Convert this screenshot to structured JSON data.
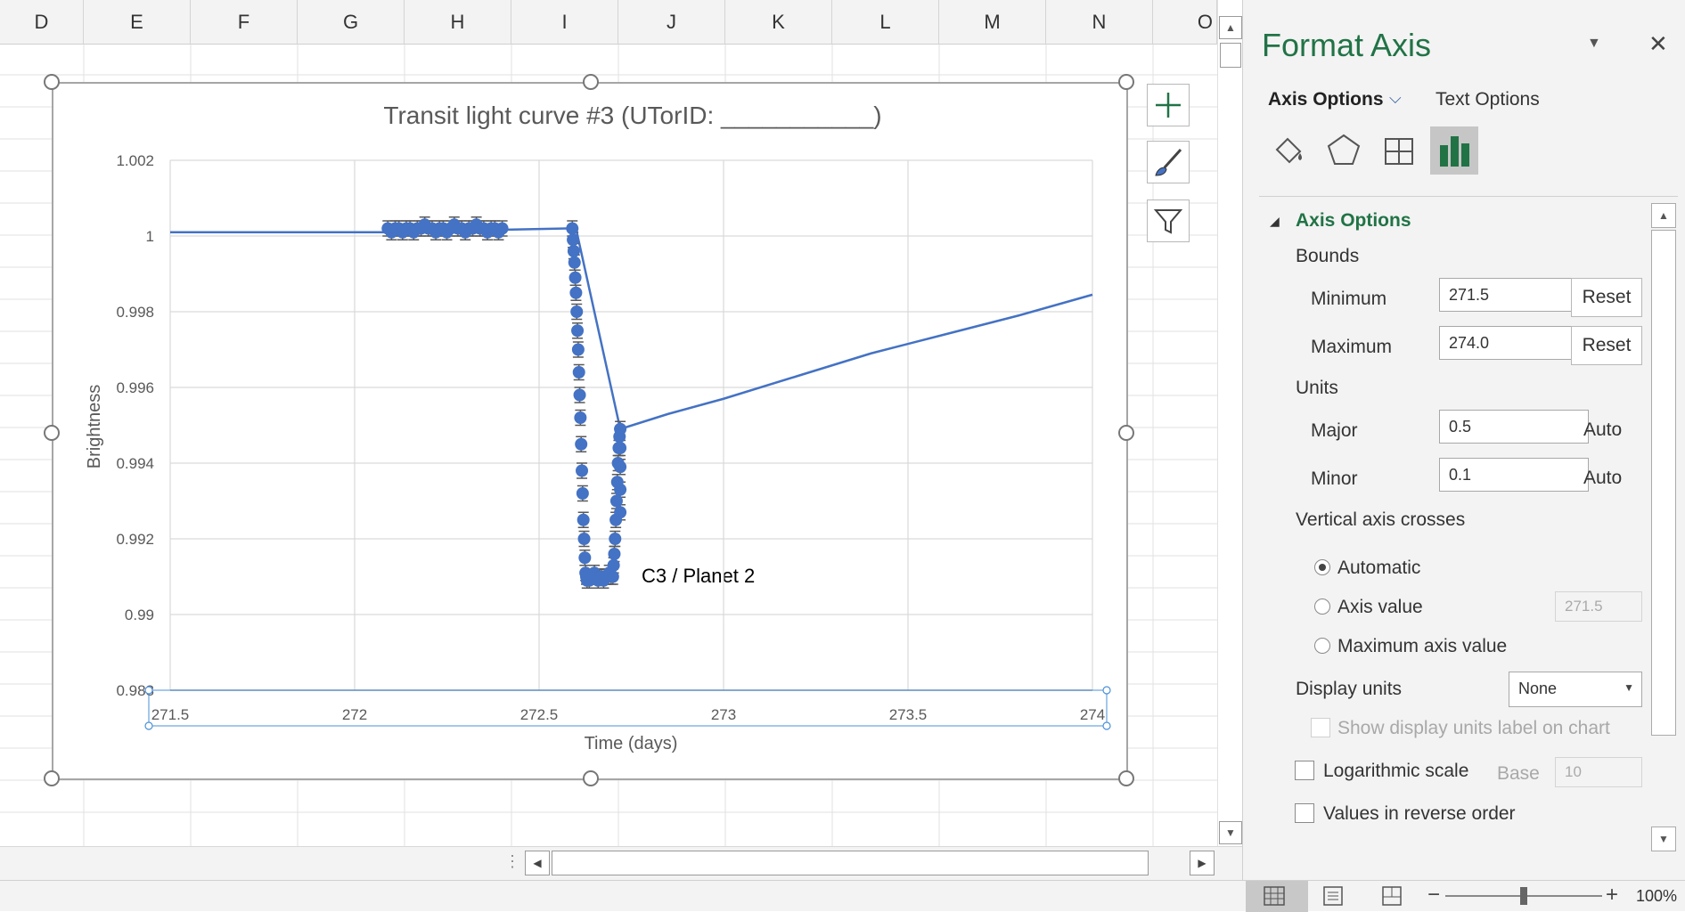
{
  "sheet": {
    "columns": [
      "D",
      "E",
      "F",
      "G",
      "H",
      "I",
      "J",
      "K",
      "L",
      "M",
      "N",
      "O"
    ]
  },
  "chart": {
    "annotation": "C3 / Planet 2"
  },
  "chart_data": {
    "type": "scatter",
    "title": "Transit light curve #3 (UTorID: ___________)",
    "xlabel": "Time (days)",
    "ylabel": "Brightness",
    "xlim": [
      271.5,
      274
    ],
    "ylim": [
      0.988,
      1.002
    ],
    "x_ticks": [
      "271.5",
      "272",
      "272.5",
      "273",
      "273.5",
      "274"
    ],
    "y_ticks": [
      "0.988",
      "0.99",
      "0.992",
      "0.994",
      "0.996",
      "0.998",
      "1",
      "1.002"
    ],
    "grid": true,
    "legend": "none",
    "series_color": "#4472c4",
    "error_bar_color": "#595959",
    "line": {
      "x": [
        271.5,
        272.08,
        272.58,
        272.6,
        272.72,
        272.85,
        273.0,
        273.2,
        273.4,
        273.6,
        273.8,
        274.0
      ],
      "y": [
        1.0001,
        1.0001,
        1.0002,
        1.0002,
        0.9949,
        0.9953,
        0.9957,
        0.9963,
        0.9969,
        0.9974,
        0.9979,
        0.99845
      ]
    },
    "points": {
      "x": [
        272.09,
        272.1,
        272.11,
        272.12,
        272.13,
        272.14,
        272.15,
        272.16,
        272.17,
        272.18,
        272.19,
        272.2,
        272.21,
        272.22,
        272.23,
        272.24,
        272.25,
        272.26,
        272.27,
        272.28,
        272.29,
        272.3,
        272.31,
        272.32,
        272.33,
        272.34,
        272.35,
        272.36,
        272.37,
        272.38,
        272.39,
        272.4,
        272.59,
        272.592,
        272.594,
        272.596,
        272.598,
        272.6,
        272.602,
        272.604,
        272.606,
        272.608,
        272.61,
        272.612,
        272.614,
        272.616,
        272.618,
        272.62,
        272.622,
        272.624,
        272.626,
        272.628,
        272.63,
        272.632,
        272.636,
        272.64,
        272.645,
        272.65,
        272.655,
        272.66,
        272.665,
        272.67,
        272.675,
        272.68,
        272.685,
        272.69,
        272.695,
        272.7,
        272.702,
        272.704,
        272.706,
        272.708,
        272.71,
        272.712,
        272.714,
        272.716,
        272.718,
        272.72,
        272.72,
        272.72,
        272.72,
        272.72
      ],
      "y": [
        1.0002,
        1.0001,
        1.0002,
        1.0002,
        1.0001,
        1.0002,
        1.0002,
        1.0001,
        1.0002,
        1.0002,
        1.0003,
        1.0002,
        1.0002,
        1.0001,
        1.0002,
        1.0002,
        1.0001,
        1.0002,
        1.0003,
        1.0002,
        1.0002,
        1.0001,
        1.0002,
        1.0002,
        1.0003,
        1.0002,
        1.0002,
        1.0001,
        1.0002,
        1.0002,
        1.0001,
        1.0002,
        1.0002,
        0.9999,
        0.9996,
        0.9993,
        0.9989,
        0.9985,
        0.998,
        0.9975,
        0.997,
        0.9964,
        0.9958,
        0.9952,
        0.9945,
        0.9938,
        0.9932,
        0.9925,
        0.992,
        0.9915,
        0.9911,
        0.991,
        0.9909,
        0.991,
        0.9909,
        0.991,
        0.991,
        0.9911,
        0.991,
        0.9909,
        0.991,
        0.991,
        0.9909,
        0.991,
        0.991,
        0.9911,
        0.991,
        0.991,
        0.9913,
        0.9916,
        0.992,
        0.9925,
        0.993,
        0.9935,
        0.994,
        0.9944,
        0.9947,
        0.9949,
        0.9944,
        0.9939,
        0.9933,
        0.9927
      ]
    },
    "error": 0.0002
  },
  "pane": {
    "title": "Format Axis",
    "tabs": [
      "Axis Options",
      "Text Options"
    ],
    "section": "Axis Options",
    "bounds_label": "Bounds",
    "minimum_label": "Minimum",
    "minimum_value": "271.5",
    "maximum_label": "Maximum",
    "maximum_value": "274.0",
    "reset_label": "Reset",
    "units_label": "Units",
    "major_label": "Major",
    "major_value": "0.5",
    "minor_label": "Minor",
    "minor_value": "0.1",
    "auto_label": "Auto",
    "crosses_label": "Vertical axis crosses",
    "crosses_options": [
      "Automatic",
      "Axis value",
      "Maximum axis value"
    ],
    "crosses_axis_value": "271.5",
    "display_units_label": "Display units",
    "display_units_value": "None",
    "show_units_label": "Show display units label on chart",
    "log_label": "Logarithmic scale",
    "base_label": "Base",
    "base_value": "10",
    "reverse_label": "Values in reverse order"
  },
  "status": {
    "zoom": "100%"
  },
  "colors": {
    "accent_green": "#217346",
    "series_blue": "#4472c4"
  }
}
